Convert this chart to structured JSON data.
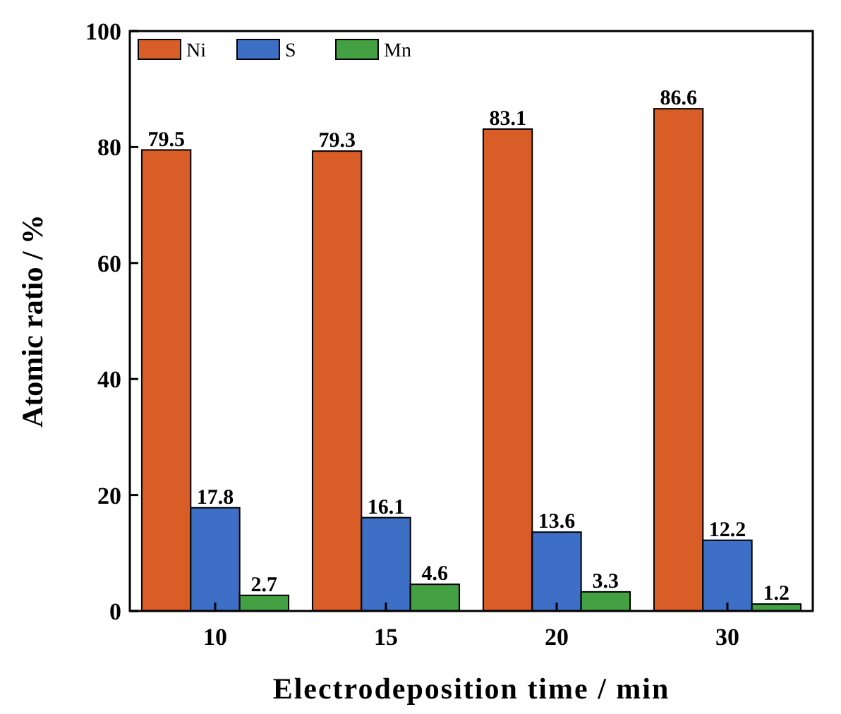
{
  "chart_data": {
    "type": "bar",
    "xlabel": "Electrodeposition time / min",
    "ylabel": "Atomic ratio / %",
    "categories": [
      "10",
      "15",
      "20",
      "30"
    ],
    "series": [
      {
        "name": "Ni",
        "color": "#d95d27",
        "values": [
          79.5,
          79.3,
          83.1,
          86.6
        ]
      },
      {
        "name": "S",
        "color": "#3d6fc6",
        "values": [
          17.8,
          16.1,
          13.6,
          12.2
        ]
      },
      {
        "name": "Mn",
        "color": "#43a043",
        "values": [
          2.7,
          4.6,
          3.3,
          1.2
        ]
      }
    ],
    "ylim": [
      0,
      100
    ],
    "yticks": [
      0,
      20,
      40,
      60,
      80,
      100
    ],
    "data_labels": true,
    "legend": "top left",
    "grid": false
  }
}
